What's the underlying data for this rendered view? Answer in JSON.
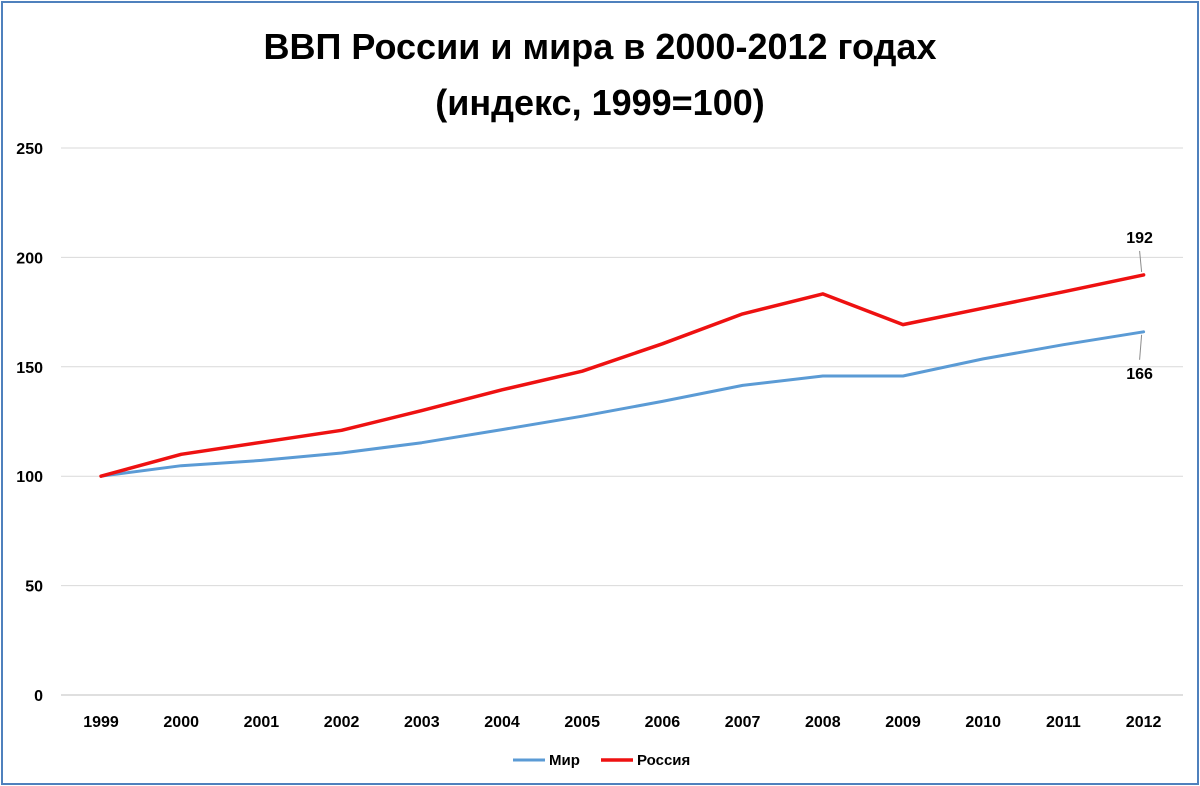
{
  "chart_data": {
    "type": "line",
    "title_line1": "ВВП России и мира в 2000-2012 годах",
    "title_line2": "(индекс, 1999=100)",
    "categories": [
      "1999",
      "2000",
      "2001",
      "2002",
      "2003",
      "2004",
      "2005",
      "2006",
      "2007",
      "2008",
      "2009",
      "2010",
      "2011",
      "2012"
    ],
    "y_ticks": [
      "0",
      "50",
      "100",
      "150",
      "200",
      "250"
    ],
    "ylim": [
      0,
      250
    ],
    "grid": true,
    "legend_position": "bottom",
    "series": [
      {
        "name": "Мир",
        "color": "#5b9bd5",
        "values": [
          100,
          104.8,
          107.2,
          110.6,
          115.3,
          121.3,
          127.4,
          134.2,
          141.5,
          145.8,
          145.8,
          153.6,
          160.1,
          166
        ]
      },
      {
        "name": "Россия",
        "color": "#ee1111",
        "values": [
          100,
          110,
          115.5,
          121,
          130,
          139.5,
          148,
          160.5,
          174.2,
          183.3,
          169.3,
          176.8,
          184.3,
          192
        ]
      }
    ],
    "data_labels": [
      {
        "series": 1,
        "index": 13,
        "text": "192"
      },
      {
        "series": 0,
        "index": 13,
        "text": "166"
      }
    ]
  }
}
